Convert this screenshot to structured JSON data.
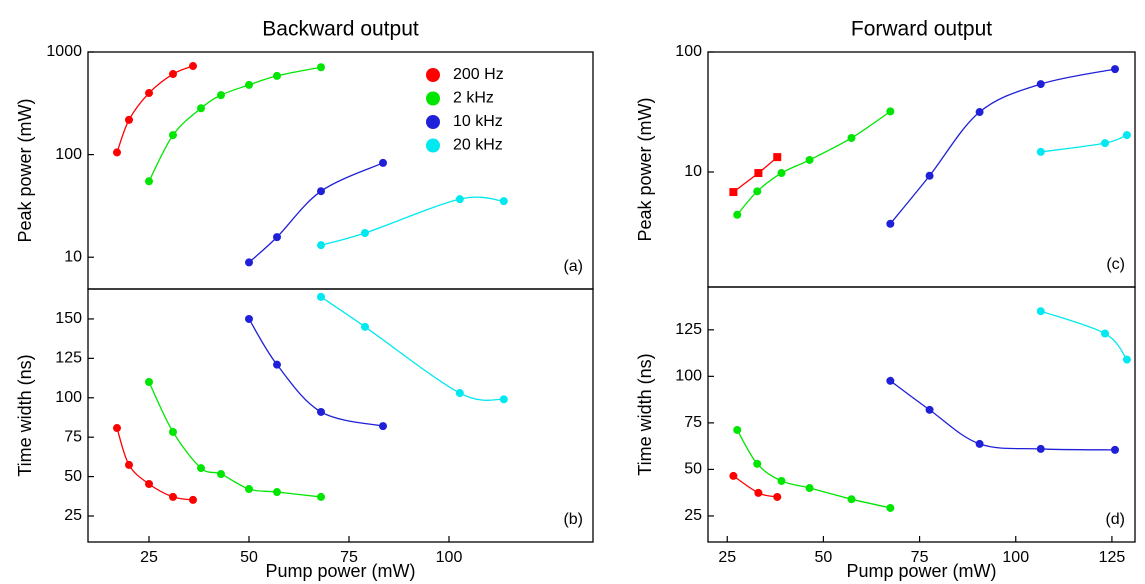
{
  "chart_data": [
    {
      "type": "scatter",
      "title": "Backward output",
      "ylabel": "Peak power (mW)",
      "annotation": "(a)",
      "xlim": [
        9.75,
        136
      ],
      "ylim": [
        4.9,
        1000
      ],
      "log_y": true,
      "yticks": [
        10,
        100,
        1000
      ],
      "legend": "upper right",
      "series": [
        {
          "name": "200 Hz",
          "color": "#ff0000",
          "marker": "circle",
          "x": [
            17,
            20,
            25,
            31,
            36
          ],
          "values": [
            105,
            218,
            398,
            610,
            730
          ]
        },
        {
          "name": "2 kHz",
          "color": "#00e600",
          "marker": "circle",
          "x": [
            25,
            31,
            38,
            43,
            50,
            57,
            68
          ],
          "values": [
            55,
            155,
            283,
            380,
            478,
            585,
            710
          ]
        },
        {
          "name": "10 kHz",
          "color": "#2020d8",
          "marker": "circle",
          "x": [
            50,
            57,
            68,
            83.5
          ],
          "values": [
            8.9,
            15.7,
            44,
            83
          ]
        },
        {
          "name": "20 kHz",
          "color": "#00e8f0",
          "marker": "circle",
          "x": [
            68,
            79,
            102.7,
            113.7
          ],
          "values": [
            13.1,
            17.2,
            36.8,
            35.2
          ]
        }
      ]
    },
    {
      "type": "scatter",
      "xlabel": "Pump power (mW)",
      "ylabel": "Time width (ns)",
      "annotation": "(b)",
      "xlim": [
        9.75,
        136
      ],
      "xticks": [
        25,
        50,
        75,
        100
      ],
      "ylim": [
        8.5,
        169
      ],
      "yticks": [
        25,
        50,
        75,
        100,
        125,
        150
      ],
      "series": [
        {
          "color": "#ff0000",
          "marker": "circle",
          "x": [
            17,
            20,
            25,
            31,
            36
          ],
          "values": [
            80.8,
            57.4,
            45.3,
            37.1,
            35.2
          ]
        },
        {
          "color": "#00e600",
          "marker": "circle",
          "x": [
            25,
            31,
            38,
            43,
            50,
            57,
            68
          ],
          "values": [
            110,
            78.3,
            55.4,
            51.6,
            42.1,
            40.2,
            37.1
          ]
        },
        {
          "color": "#2020d8",
          "marker": "circle",
          "x": [
            50,
            57,
            68,
            83.5
          ],
          "values": [
            150,
            121,
            91,
            82
          ]
        },
        {
          "color": "#00e8f0",
          "marker": "circle",
          "x": [
            68,
            79,
            102.7,
            113.7
          ],
          "values": [
            164,
            145,
            103,
            99
          ]
        }
      ]
    },
    {
      "type": "scatter",
      "title": "Forward output",
      "ylabel": "Peak power (mW)",
      "annotation": "(c)",
      "xlim": [
        20,
        131
      ],
      "ylim": [
        1.1,
        100
      ],
      "log_y": true,
      "yticks": [
        10,
        100
      ],
      "series": [
        {
          "color": "#ff0000",
          "marker": "square",
          "x": [
            26.6,
            33.1,
            38
          ],
          "values": [
            6.8,
            9.8,
            13.3
          ]
        },
        {
          "color": "#00e600",
          "marker": "circle",
          "x": [
            27.6,
            32.8,
            39.1,
            46.4,
            57.3,
            67.4
          ],
          "values": [
            4.4,
            6.9,
            9.8,
            12.6,
            19.2,
            32
          ]
        },
        {
          "color": "#2020d8",
          "marker": "circle",
          "x": [
            67.4,
            77.6,
            90.6,
            106.5,
            125.8
          ],
          "values": [
            3.7,
            9.3,
            31.6,
            54,
            72
          ]
        },
        {
          "color": "#00e8f0",
          "marker": "circle",
          "x": [
            106.5,
            123.2,
            128.9
          ],
          "values": [
            14.7,
            17.4,
            20.3
          ]
        }
      ]
    },
    {
      "type": "scatter",
      "xlabel": "Pump power (mW)",
      "ylabel": "Time width (ns)",
      "annotation": "(d)",
      "xlim": [
        20,
        131
      ],
      "xticks": [
        25,
        50,
        75,
        100,
        125
      ],
      "ylim": [
        11,
        148
      ],
      "yticks": [
        25,
        50,
        75,
        100,
        125
      ],
      "series": [
        {
          "color": "#ff0000",
          "marker": "circle",
          "x": [
            26.6,
            33.1,
            38
          ],
          "values": [
            46.5,
            37.4,
            35.2
          ]
        },
        {
          "color": "#00e600",
          "marker": "circle",
          "x": [
            27.6,
            32.8,
            39.1,
            46.4,
            57.3,
            67.4
          ],
          "values": [
            71.2,
            53,
            43.8,
            40,
            34,
            29.3
          ]
        },
        {
          "color": "#2020d8",
          "marker": "circle",
          "x": [
            67.4,
            77.6,
            90.6,
            106.5,
            125.8
          ],
          "values": [
            97.6,
            82,
            63.7,
            61,
            60.5
          ]
        },
        {
          "color": "#00e8f0",
          "marker": "circle",
          "x": [
            106.5,
            123.2,
            128.9
          ],
          "values": [
            135,
            123,
            109
          ]
        }
      ]
    }
  ]
}
